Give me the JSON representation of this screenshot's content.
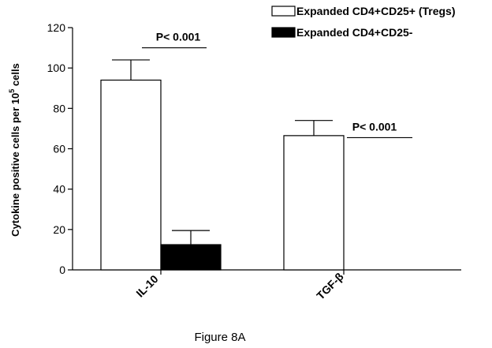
{
  "figure": {
    "caption": "Figure 8A"
  },
  "chart_data": {
    "type": "bar",
    "title": "",
    "xlabel": "",
    "ylabel": "Cytokine positive cells per 10",
    "ylabel_superscript": "5",
    "ylabel_suffix": " cells",
    "ylim": [
      0,
      120
    ],
    "yticks": [
      0,
      20,
      40,
      60,
      80,
      100,
      120
    ],
    "grid": false,
    "legend_position": "top-right",
    "categories": [
      "IL-10",
      "TGF-β"
    ],
    "series": [
      {
        "name": "Expanded CD4+CD25+ (Tregs)",
        "color": "#ffffff",
        "values": [
          94,
          66.5
        ],
        "errors": [
          10,
          7.5
        ]
      },
      {
        "name": "Expanded CD4+CD25-",
        "color": "#000000",
        "values": [
          12.5,
          null
        ],
        "errors": [
          7,
          null
        ]
      }
    ],
    "annotations": [
      {
        "text": "P< 0.001",
        "category": "IL-10",
        "y": 110
      },
      {
        "text": "P< 0.001",
        "category": "TGF-β",
        "y": 65.5
      }
    ]
  }
}
